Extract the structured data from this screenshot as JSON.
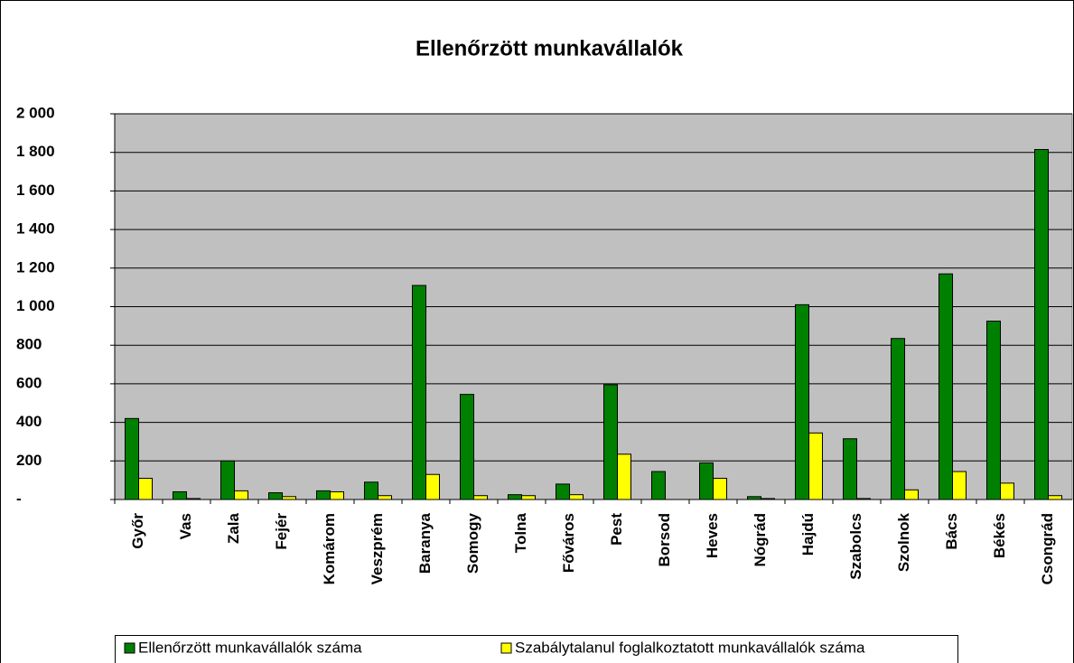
{
  "chart_data": {
    "type": "bar",
    "title": "Ellenőrzött munkavállalók",
    "categories": [
      "Győr",
      "Vas",
      "Zala",
      "Fejér",
      "Komárom",
      "Veszprém",
      "Baranya",
      "Somogy",
      "Tolna",
      "Főváros",
      "Pest",
      "Borsod",
      "Heves",
      "Nógrád",
      "Hajdú",
      "Szabolcs",
      "Szolnok",
      "Bács",
      "Békés",
      "Csongrád"
    ],
    "series": [
      {
        "name": "Ellenőrzött munkavállalók száma",
        "color": "#008000",
        "values": [
          420,
          40,
          200,
          35,
          45,
          90,
          1110,
          545,
          25,
          80,
          595,
          145,
          190,
          15,
          1010,
          315,
          835,
          1170,
          925,
          1815
        ]
      },
      {
        "name": "Szabálytalanul foglalkoztatott munkavállalók száma",
        "color": "#ffff00",
        "values": [
          110,
          5,
          45,
          15,
          40,
          20,
          130,
          20,
          20,
          25,
          235,
          0,
          110,
          5,
          345,
          5,
          50,
          145,
          85,
          20
        ]
      }
    ],
    "ylim": [
      0,
      2000
    ],
    "yticks": [
      {
        "value": 0,
        "label": "-"
      },
      200,
      400,
      600,
      800,
      {
        "value": 1000,
        "label": "1 000"
      },
      {
        "value": 1200,
        "label": "1 200"
      },
      {
        "value": 1400,
        "label": "1 400"
      },
      {
        "value": 1600,
        "label": "1 600"
      },
      {
        "value": 1800,
        "label": "1 800"
      },
      {
        "value": 2000,
        "label": "2 000"
      }
    ],
    "grid": true,
    "legend": "bottom"
  }
}
